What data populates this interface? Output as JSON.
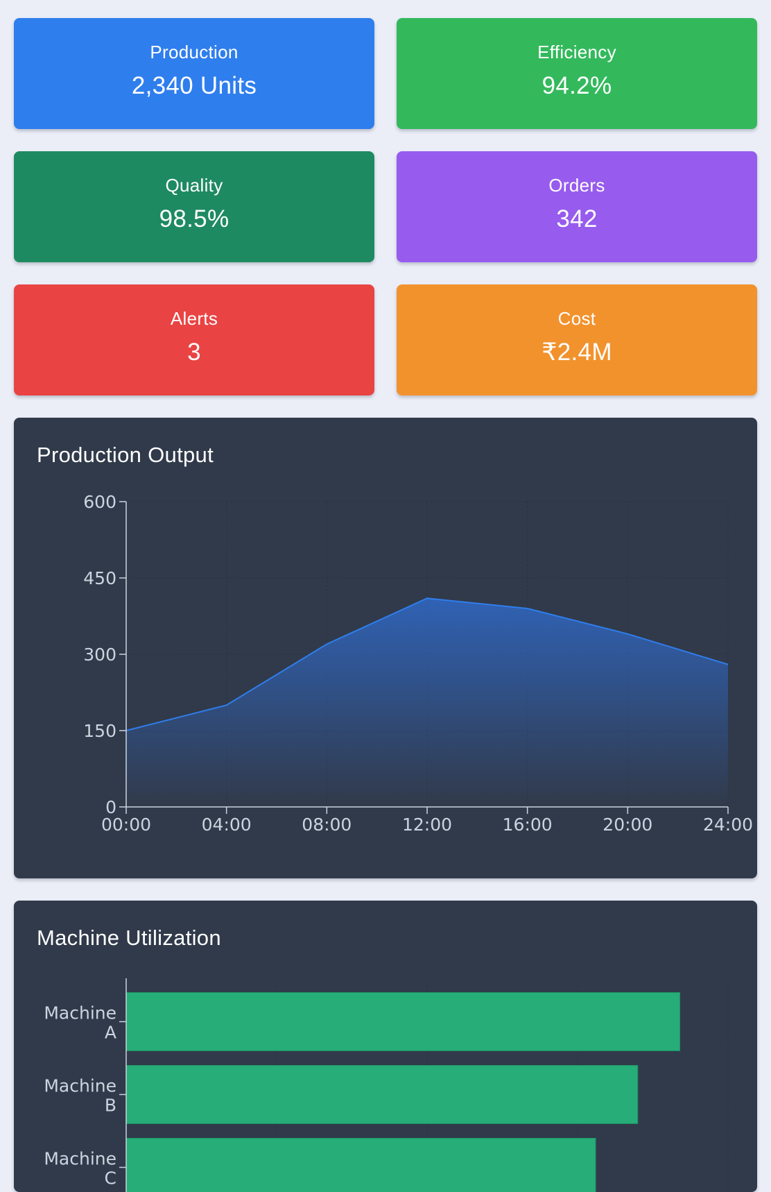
{
  "kpis": [
    {
      "label": "Production",
      "value": "2,340 Units",
      "color": "#2f7eed"
    },
    {
      "label": "Efficiency",
      "value": "94.2%",
      "color": "#33b95c"
    },
    {
      "label": "Quality",
      "value": "98.5%",
      "color": "#1e8a61"
    },
    {
      "label": "Orders",
      "value": "342",
      "color": "#975bee"
    },
    {
      "label": "Alerts",
      "value": "3",
      "color": "#e94343"
    },
    {
      "label": "Cost",
      "value": "₹2.4M",
      "color": "#f2922d"
    }
  ],
  "chart_data": [
    {
      "type": "area",
      "title": "Production Output",
      "x": [
        "00:00",
        "04:00",
        "08:00",
        "12:00",
        "16:00",
        "20:00",
        "24:00"
      ],
      "values": [
        150,
        200,
        320,
        410,
        390,
        340,
        280
      ],
      "yticks": [
        0,
        150,
        300,
        450,
        600
      ],
      "ylim": [
        0,
        600
      ],
      "xlabel": "",
      "ylabel": "",
      "grid": true,
      "line_color": "#2f7eed"
    },
    {
      "type": "bar",
      "orientation": "horizontal",
      "title": "Machine Utilization",
      "categories": [
        "Machine A",
        "Machine B",
        "Machine C"
      ],
      "values": [
        92,
        85,
        78
      ],
      "xlim": [
        0,
        100
      ],
      "grid": true,
      "bar_color": "#26ad78"
    }
  ]
}
